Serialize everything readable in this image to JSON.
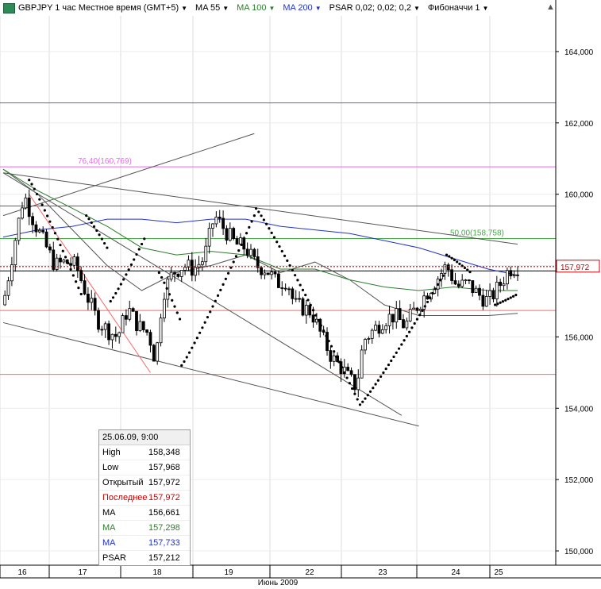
{
  "toolbar": {
    "symbol_label": "GBPJPY 1 час Местное время (GMT+5)",
    "ma1_label": "MA 55",
    "ma2_label": "MA 100",
    "ma3_label": "MA 200",
    "psar_label": "PSAR 0,02; 0,02; 0,2",
    "fib_label": "Фибоначчи 1",
    "dropdown_icon": "triangle-down-icon",
    "pin_icon": "pin-icon"
  },
  "colors": {
    "up_candle": "#ffffff",
    "down_candle": "#000000",
    "ma55": "#555555",
    "ma100": "#2e7d2e",
    "ma200": "#2233cc",
    "psar": "#000000",
    "fib_pink": "#ee66ee",
    "fib_purple": "#7744aa",
    "fib_green": "#44aa44",
    "level_red": "#ff6666",
    "price_red": "#cc0000",
    "blue_level": "#5566cc"
  },
  "info_box": {
    "date": "25.06.09, 9:00",
    "rows": [
      {
        "label": "High",
        "value": "158,348",
        "color": "#000000"
      },
      {
        "label": "Low",
        "value": "157,968",
        "color": "#000000"
      },
      {
        "label": "Открытый",
        "value": "157,972",
        "color": "#000000"
      },
      {
        "label": "Последнее",
        "value": "157,972",
        "color": "#cc0000"
      },
      {
        "label": "MA",
        "value": "156,661",
        "color": "#000000"
      },
      {
        "label": "MA",
        "value": "157,298",
        "color": "#2e7d2e"
      },
      {
        "label": "MA",
        "value": "157,733",
        "color": "#2233cc"
      },
      {
        "label": "PSAR",
        "value": "157,212",
        "color": "#000000"
      }
    ]
  },
  "chart_data": {
    "type": "candlestick",
    "symbol": "GBPJPY",
    "timeframe": "1 час",
    "ylim": [
      149.6,
      165.0
    ],
    "y_ticks": [
      150.0,
      152.0,
      154.0,
      156.0,
      158.0,
      160.0,
      162.0,
      164.0
    ],
    "y_tick_labels": [
      "150,000",
      "152,000",
      "154,000",
      "156,000",
      "158,000",
      "160,000",
      "162,000",
      "164,000"
    ],
    "x_day_labels": [
      "16",
      "17",
      "18",
      "19",
      "22",
      "23",
      "24",
      "25"
    ],
    "x_axis_label": "Июнь 2009",
    "last_price": 157.972,
    "last_price_label": "157,972",
    "close_path": [
      {
        "t": 0,
        "v": 156.9
      },
      {
        "t": 6,
        "v": 158.5
      },
      {
        "t": 12,
        "v": 160.0
      },
      {
        "t": 18,
        "v": 159.2
      },
      {
        "t": 24,
        "v": 158.6
      },
      {
        "t": 30,
        "v": 158.0
      },
      {
        "t": 36,
        "v": 158.1
      },
      {
        "t": 42,
        "v": 158.0
      },
      {
        "t": 48,
        "v": 157.2
      },
      {
        "t": 54,
        "v": 156.5
      },
      {
        "t": 60,
        "v": 156.2
      },
      {
        "t": 66,
        "v": 156.0
      },
      {
        "t": 72,
        "v": 156.8
      },
      {
        "t": 78,
        "v": 156.3
      },
      {
        "t": 84,
        "v": 156.1
      },
      {
        "t": 88,
        "v": 155.3
      },
      {
        "t": 92,
        "v": 157.2
      },
      {
        "t": 98,
        "v": 157.8
      },
      {
        "t": 104,
        "v": 158.0
      },
      {
        "t": 110,
        "v": 157.9
      },
      {
        "t": 116,
        "v": 158.2
      },
      {
        "t": 122,
        "v": 159.4
      },
      {
        "t": 128,
        "v": 159.0
      },
      {
        "t": 134,
        "v": 158.6
      },
      {
        "t": 140,
        "v": 158.5
      },
      {
        "t": 146,
        "v": 158.0
      },
      {
        "t": 152,
        "v": 157.9
      },
      {
        "t": 158,
        "v": 157.5
      },
      {
        "t": 164,
        "v": 157.6
      },
      {
        "t": 168,
        "v": 156.9
      },
      {
        "t": 174,
        "v": 156.8
      },
      {
        "t": 178,
        "v": 156.7
      },
      {
        "t": 184,
        "v": 156.0
      },
      {
        "t": 190,
        "v": 155.4
      },
      {
        "t": 196,
        "v": 155.1
      },
      {
        "t": 200,
        "v": 154.8
      },
      {
        "t": 204,
        "v": 154.6
      },
      {
        "t": 208,
        "v": 155.9
      },
      {
        "t": 214,
        "v": 156.2
      },
      {
        "t": 220,
        "v": 156.5
      },
      {
        "t": 226,
        "v": 156.6
      },
      {
        "t": 232,
        "v": 156.3
      },
      {
        "t": 238,
        "v": 156.8
      },
      {
        "t": 244,
        "v": 157.2
      },
      {
        "t": 250,
        "v": 157.6
      },
      {
        "t": 256,
        "v": 158.0
      },
      {
        "t": 262,
        "v": 157.4
      },
      {
        "t": 268,
        "v": 157.5
      },
      {
        "t": 274,
        "v": 157.2
      },
      {
        "t": 280,
        "v": 157.0
      },
      {
        "t": 286,
        "v": 157.4
      },
      {
        "t": 292,
        "v": 157.9
      },
      {
        "t": 297,
        "v": 157.972
      }
    ],
    "ma55": [
      {
        "t": 0,
        "v": 160.7
      },
      {
        "t": 20,
        "v": 160.0
      },
      {
        "t": 40,
        "v": 159.0
      },
      {
        "t": 60,
        "v": 158.0
      },
      {
        "t": 80,
        "v": 157.3
      },
      {
        "t": 100,
        "v": 157.8
      },
      {
        "t": 120,
        "v": 158.0
      },
      {
        "t": 140,
        "v": 158.3
      },
      {
        "t": 160,
        "v": 157.8
      },
      {
        "t": 180,
        "v": 158.1
      },
      {
        "t": 200,
        "v": 157.6
      },
      {
        "t": 220,
        "v": 156.9
      },
      {
        "t": 240,
        "v": 156.6
      },
      {
        "t": 260,
        "v": 156.6
      },
      {
        "t": 280,
        "v": 156.6
      },
      {
        "t": 297,
        "v": 156.66
      }
    ],
    "ma100": [
      {
        "t": 0,
        "v": 160.7
      },
      {
        "t": 20,
        "v": 160.1
      },
      {
        "t": 40,
        "v": 159.6
      },
      {
        "t": 60,
        "v": 159.1
      },
      {
        "t": 80,
        "v": 158.5
      },
      {
        "t": 100,
        "v": 158.3
      },
      {
        "t": 120,
        "v": 158.4
      },
      {
        "t": 140,
        "v": 158.3
      },
      {
        "t": 160,
        "v": 157.9
      },
      {
        "t": 180,
        "v": 157.9
      },
      {
        "t": 200,
        "v": 157.6
      },
      {
        "t": 220,
        "v": 157.4
      },
      {
        "t": 240,
        "v": 157.3
      },
      {
        "t": 260,
        "v": 157.4
      },
      {
        "t": 280,
        "v": 157.3
      },
      {
        "t": 297,
        "v": 157.3
      }
    ],
    "ma200": [
      {
        "t": 0,
        "v": 158.8
      },
      {
        "t": 20,
        "v": 159.0
      },
      {
        "t": 40,
        "v": 159.1
      },
      {
        "t": 60,
        "v": 159.3
      },
      {
        "t": 80,
        "v": 159.3
      },
      {
        "t": 100,
        "v": 159.2
      },
      {
        "t": 120,
        "v": 159.3
      },
      {
        "t": 140,
        "v": 159.3
      },
      {
        "t": 160,
        "v": 159.1
      },
      {
        "t": 180,
        "v": 159.0
      },
      {
        "t": 200,
        "v": 158.9
      },
      {
        "t": 220,
        "v": 158.7
      },
      {
        "t": 240,
        "v": 158.5
      },
      {
        "t": 260,
        "v": 158.2
      },
      {
        "t": 280,
        "v": 157.9
      },
      {
        "t": 297,
        "v": 157.73
      }
    ],
    "psar_segments": [
      {
        "t0": 15,
        "v0": 160.4,
        "t1": 45,
        "v1": 157.2
      },
      {
        "t0": 48,
        "v0": 159.4,
        "t1": 60,
        "v1": 158.5
      },
      {
        "t0": 62,
        "v0": 157.0,
        "t1": 82,
        "v1": 158.8
      },
      {
        "t0": 90,
        "v0": 157.8,
        "t1": 102,
        "v1": 156.5
      },
      {
        "t0": 103,
        "v0": 155.2,
        "t1": 145,
        "v1": 159.4
      },
      {
        "t0": 146,
        "v0": 159.6,
        "t1": 205,
        "v1": 154.2
      },
      {
        "t0": 206,
        "v0": 154.1,
        "t1": 255,
        "v1": 157.8
      },
      {
        "t0": 256,
        "v0": 158.3,
        "t1": 270,
        "v1": 157.8
      },
      {
        "t0": 284,
        "v0": 156.9,
        "t1": 297,
        "v1": 157.2
      }
    ],
    "horizontal_levels": [
      {
        "v": 162.56,
        "color": "#5566cc",
        "label": ""
      },
      {
        "v": 160.769,
        "color": "#ee66ee",
        "label": "76,40(160,769)"
      },
      {
        "v": 159.67,
        "color": "#7744aa",
        "label": ""
      },
      {
        "v": 158.758,
        "color": "#44aa44",
        "label": "50,00(158,758)"
      },
      {
        "v": 157.85,
        "color": "#000000",
        "label": ""
      },
      {
        "v": 156.74,
        "color": "#ff6666",
        "label": ""
      },
      {
        "v": 154.95,
        "color": "#ff6666",
        "label": ""
      }
    ],
    "trendlines": [
      {
        "t0": 0,
        "v0": 159.4,
        "t1": 145,
        "v1": 161.7,
        "color": "#555555"
      },
      {
        "t0": 0,
        "v0": 160.6,
        "t1": 297,
        "v1": 158.6,
        "color": "#555555"
      },
      {
        "t0": 0,
        "v0": 160.6,
        "t1": 230,
        "v1": 153.8,
        "color": "#555555"
      },
      {
        "t0": 0,
        "v0": 156.4,
        "t1": 240,
        "v1": 153.5,
        "color": "#555555"
      },
      {
        "t0": 15,
        "v0": 160.0,
        "t1": 85,
        "v1": 155.0,
        "color": "#ff6666"
      }
    ]
  }
}
